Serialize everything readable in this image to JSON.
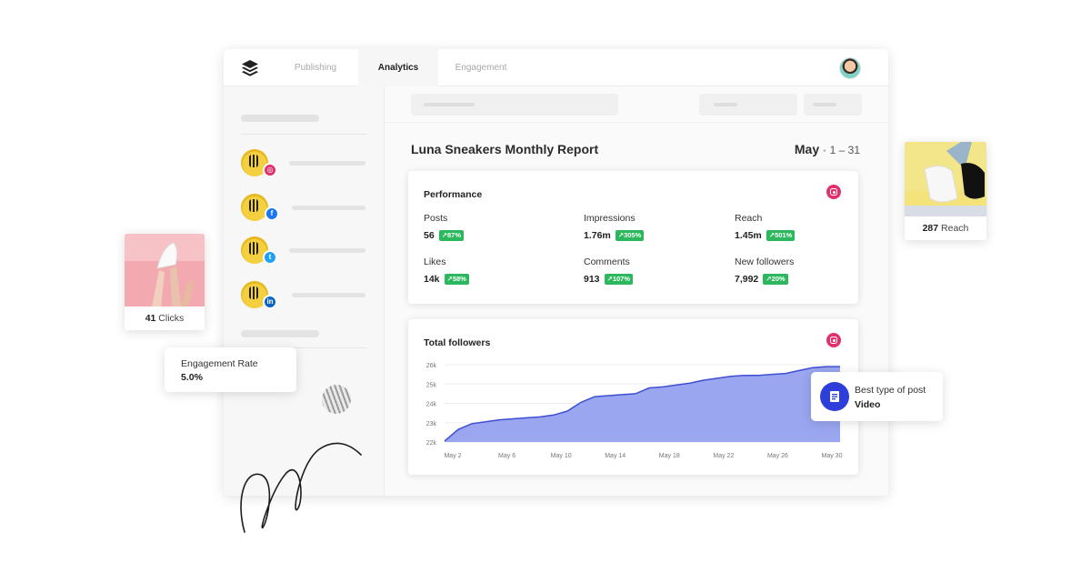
{
  "nav": {
    "tabs": [
      {
        "label": "Publishing",
        "active": false
      },
      {
        "label": "Analytics",
        "active": true
      },
      {
        "label": "Engagement",
        "active": false
      }
    ]
  },
  "sidebar": {
    "accounts": [
      {
        "network": "instagram-icon",
        "color": "#e1306c"
      },
      {
        "network": "facebook-icon",
        "color": "#1877f2"
      },
      {
        "network": "twitter-icon",
        "color": "#1da1f2"
      },
      {
        "network": "linkedin-icon",
        "color": "#0a66c2"
      }
    ]
  },
  "report": {
    "title": "Luna Sneakers Monthly Report",
    "month": "May",
    "range": "1 – 31"
  },
  "performance": {
    "title": "Performance",
    "network_icon": "instagram-icon",
    "metrics": [
      {
        "label": "Posts",
        "value": "56",
        "change": "↗87%"
      },
      {
        "label": "Impressions",
        "value": "1.76m",
        "change": "↗305%"
      },
      {
        "label": "Reach",
        "value": "1.45m",
        "change": "↗501%"
      },
      {
        "label": "Likes",
        "value": "14k",
        "change": "↗58%"
      },
      {
        "label": "Comments",
        "value": "913",
        "change": "↗107%"
      },
      {
        "label": "New followers",
        "value": "7,992",
        "change": "↗20%"
      }
    ]
  },
  "followers": {
    "title": "Total followers",
    "network_icon": "instagram-icon"
  },
  "chart_data": {
    "type": "area",
    "title": "Total followers",
    "x_tick_labels": [
      "May 2",
      "May 6",
      "May 10",
      "May 14",
      "May 18",
      "May 22",
      "May 26",
      "May 30"
    ],
    "y_tick_labels": [
      "26k",
      "25k",
      "24k",
      "23k",
      "22k"
    ],
    "ylim": [
      22000,
      26000
    ],
    "x": [
      1,
      2,
      3,
      4,
      5,
      6,
      7,
      8,
      9,
      10,
      11,
      12,
      13,
      14,
      15,
      16,
      17,
      18,
      19,
      20,
      21,
      22,
      23,
      24,
      25,
      26,
      27,
      28,
      29,
      30
    ],
    "values": [
      22050,
      22650,
      22950,
      23050,
      23150,
      23200,
      23250,
      23300,
      23400,
      23600,
      24050,
      24350,
      24400,
      24450,
      24500,
      24800,
      24850,
      24950,
      25050,
      25200,
      25300,
      25400,
      25450,
      25450,
      25500,
      25550,
      25700,
      25850,
      25900,
      25900
    ],
    "fill_color": "#9aa6ef",
    "line_color": "#3e4fd1",
    "grid": true
  },
  "floats": {
    "clicks": {
      "value": "41",
      "label": "Clicks"
    },
    "reach": {
      "value": "287",
      "label": "Reach"
    },
    "engagement": {
      "label": "Engagement Rate",
      "value": "5.0%"
    },
    "best_post": {
      "label": "Best type of post",
      "value": "Video",
      "icon": "post-list-icon"
    }
  },
  "colors": {
    "accent": "#2d3fd8",
    "badge": "#2bb85c",
    "instagram": "#e1306c"
  }
}
